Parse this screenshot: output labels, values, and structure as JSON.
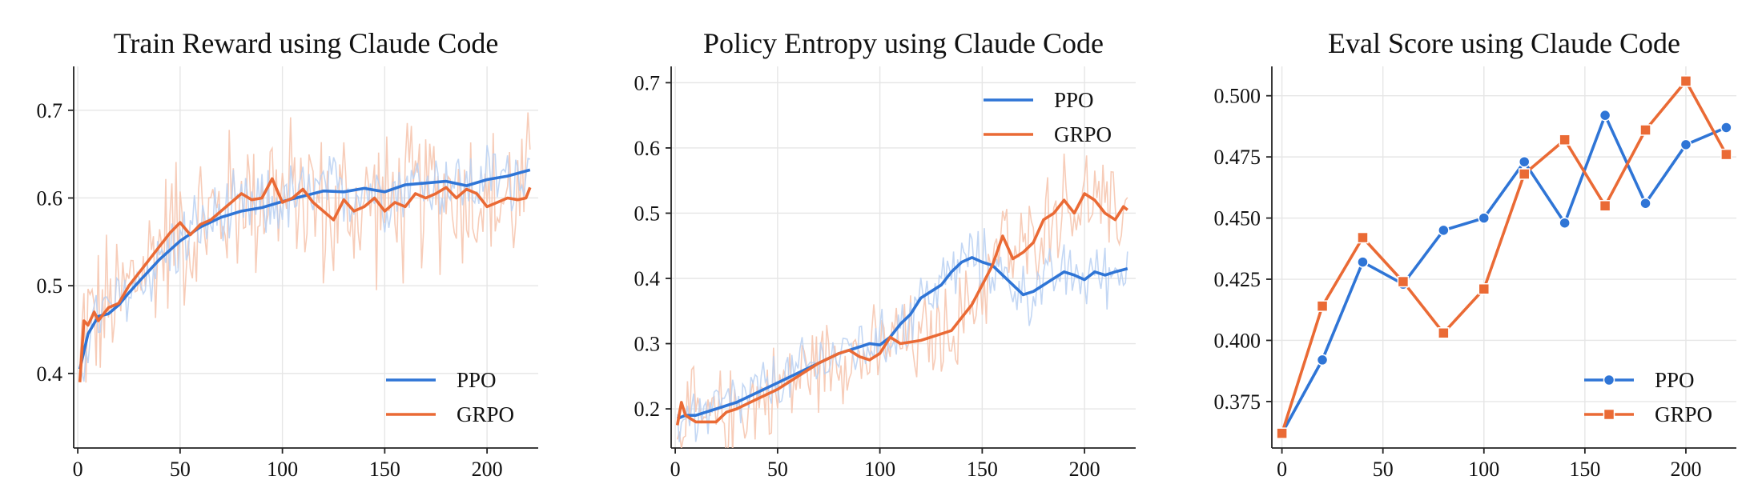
{
  "colors": {
    "ppo": "#2f75d6",
    "grpo": "#ea6a35"
  },
  "chart_data": [
    {
      "type": "line",
      "title": "Train Reward using Claude Code",
      "xlabel": "",
      "ylabel": "",
      "xlim": [
        -2,
        225
      ],
      "ylim": [
        0.315,
        0.75
      ],
      "xticks": [
        0,
        50,
        100,
        150,
        200
      ],
      "yticks": [
        0.4,
        0.5,
        0.6,
        0.7
      ],
      "ytick_labels": [
        "0.4",
        "0.5",
        "0.6",
        "0.7"
      ],
      "legend_position": "lower-right",
      "raw_noise": {
        "ppo": 0.035,
        "grpo": 0.075
      },
      "series": [
        {
          "name": "PPO",
          "color": "#2f75d6",
          "x": [
            1,
            5,
            10,
            15,
            20,
            25,
            30,
            40,
            50,
            60,
            70,
            80,
            90,
            100,
            110,
            120,
            130,
            140,
            150,
            160,
            170,
            180,
            190,
            200,
            210,
            221
          ],
          "y": [
            0.405,
            0.445,
            0.465,
            0.468,
            0.478,
            0.492,
            0.505,
            0.53,
            0.551,
            0.567,
            0.578,
            0.585,
            0.589,
            0.596,
            0.602,
            0.608,
            0.607,
            0.611,
            0.607,
            0.615,
            0.617,
            0.619,
            0.614,
            0.621,
            0.625,
            0.632
          ]
        },
        {
          "name": "GRPO",
          "color": "#ea6a35",
          "x": [
            1,
            3,
            5,
            8,
            10,
            15,
            20,
            25,
            30,
            40,
            45,
            50,
            55,
            60,
            65,
            70,
            75,
            80,
            85,
            90,
            95,
            100,
            105,
            110,
            115,
            120,
            125,
            130,
            135,
            140,
            145,
            150,
            155,
            160,
            165,
            170,
            175,
            180,
            185,
            190,
            195,
            200,
            205,
            210,
            215,
            219,
            221
          ],
          "y": [
            0.39,
            0.46,
            0.455,
            0.47,
            0.46,
            0.475,
            0.48,
            0.5,
            0.515,
            0.545,
            0.56,
            0.572,
            0.558,
            0.57,
            0.575,
            0.585,
            0.595,
            0.605,
            0.598,
            0.6,
            0.622,
            0.595,
            0.6,
            0.61,
            0.595,
            0.585,
            0.575,
            0.598,
            0.585,
            0.59,
            0.6,
            0.585,
            0.595,
            0.59,
            0.605,
            0.6,
            0.605,
            0.612,
            0.6,
            0.61,
            0.605,
            0.59,
            0.595,
            0.6,
            0.598,
            0.6,
            0.612
          ]
        }
      ]
    },
    {
      "type": "line",
      "title": "Policy Entropy using Claude Code",
      "xlabel": "",
      "ylabel": "",
      "xlim": [
        -2,
        225
      ],
      "ylim": [
        0.14,
        0.725
      ],
      "xticks": [
        0,
        50,
        100,
        150,
        200
      ],
      "yticks": [
        0.2,
        0.3,
        0.4,
        0.5,
        0.6,
        0.7
      ],
      "ytick_labels": [
        "0.2",
        "0.3",
        "0.4",
        "0.5",
        "0.6",
        "0.7"
      ],
      "legend_position": "upper-right",
      "raw_noise": {
        "ppo": 0.04,
        "grpo": 0.06
      },
      "series": [
        {
          "name": "PPO",
          "color": "#2f75d6",
          "x": [
            1,
            5,
            10,
            20,
            30,
            40,
            50,
            60,
            70,
            80,
            90,
            95,
            100,
            105,
            110,
            115,
            120,
            125,
            130,
            135,
            140,
            145,
            150,
            155,
            160,
            165,
            170,
            175,
            180,
            185,
            190,
            195,
            200,
            205,
            210,
            215,
            221
          ],
          "y": [
            0.185,
            0.19,
            0.19,
            0.2,
            0.21,
            0.225,
            0.24,
            0.255,
            0.27,
            0.285,
            0.295,
            0.3,
            0.298,
            0.31,
            0.33,
            0.345,
            0.37,
            0.38,
            0.39,
            0.41,
            0.425,
            0.432,
            0.425,
            0.42,
            0.405,
            0.39,
            0.375,
            0.38,
            0.39,
            0.4,
            0.41,
            0.405,
            0.398,
            0.41,
            0.405,
            0.41,
            0.415
          ]
        },
        {
          "name": "GRPO",
          "color": "#ea6a35",
          "x": [
            1,
            3,
            5,
            10,
            20,
            25,
            30,
            40,
            50,
            60,
            70,
            80,
            85,
            90,
            95,
            100,
            105,
            110,
            120,
            130,
            135,
            140,
            145,
            150,
            155,
            160,
            165,
            170,
            175,
            180,
            185,
            190,
            195,
            200,
            205,
            210,
            215,
            219,
            221
          ],
          "y": [
            0.175,
            0.21,
            0.19,
            0.18,
            0.18,
            0.195,
            0.2,
            0.215,
            0.23,
            0.25,
            0.27,
            0.285,
            0.29,
            0.28,
            0.275,
            0.285,
            0.31,
            0.3,
            0.305,
            0.315,
            0.32,
            0.34,
            0.36,
            0.39,
            0.42,
            0.465,
            0.43,
            0.44,
            0.455,
            0.49,
            0.5,
            0.52,
            0.5,
            0.53,
            0.52,
            0.5,
            0.49,
            0.51,
            0.505
          ]
        }
      ]
    },
    {
      "type": "line",
      "title": "Eval Score using Claude Code",
      "xlabel": "",
      "ylabel": "",
      "xlim": [
        -5,
        225
      ],
      "ylim": [
        0.356,
        0.512
      ],
      "xticks": [
        0,
        50,
        100,
        150,
        200
      ],
      "yticks": [
        0.375,
        0.4,
        0.425,
        0.45,
        0.475,
        0.5
      ],
      "ytick_labels": [
        "0.375",
        "0.400",
        "0.425",
        "0.450",
        "0.475",
        "0.500"
      ],
      "legend_position": "lower-right",
      "markers": {
        "PPO": "circle",
        "GRPO": "square"
      },
      "series": [
        {
          "name": "PPO",
          "color": "#2f75d6",
          "x": [
            0,
            20,
            40,
            60,
            80,
            100,
            120,
            140,
            160,
            180,
            200,
            220
          ],
          "y": [
            0.362,
            0.392,
            0.432,
            0.423,
            0.445,
            0.45,
            0.473,
            0.448,
            0.492,
            0.456,
            0.48,
            0.487
          ]
        },
        {
          "name": "GRPO",
          "color": "#ea6a35",
          "x": [
            0,
            20,
            40,
            60,
            80,
            100,
            120,
            140,
            160,
            180,
            200,
            220
          ],
          "y": [
            0.362,
            0.414,
            0.442,
            0.424,
            0.403,
            0.421,
            0.468,
            0.482,
            0.455,
            0.486,
            0.506,
            0.476
          ]
        }
      ]
    }
  ]
}
